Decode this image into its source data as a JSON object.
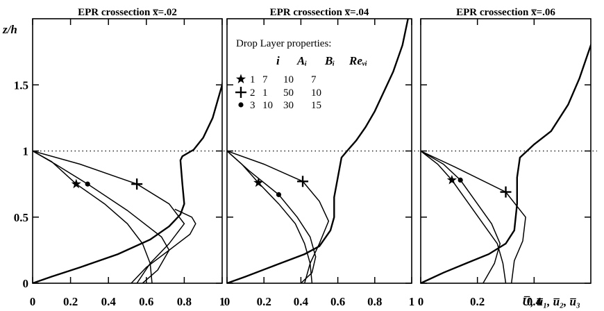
{
  "y_axis_label": "z/h",
  "x_axis_label_right": "U̅, u̅₁, u̅₂, u̅₃",
  "legend": {
    "title": "Drop Layer properties:",
    "headers": [
      "i",
      "Aᵢ",
      "Bᵢ",
      "Reᵥᵢ"
    ],
    "rows": [
      {
        "marker": "★",
        "marker_name": "star",
        "i": "1",
        "A": "7",
        "B": "10",
        "Re": "7"
      },
      {
        "marker": "+",
        "marker_name": "plus",
        "i": "2",
        "A": "1",
        "B": "50",
        "Re": "10"
      },
      {
        "marker": "•",
        "marker_name": "dot",
        "i": "3",
        "A": "10",
        "B": "30",
        "Re": "15"
      }
    ]
  },
  "chart_data": [
    {
      "type": "line",
      "title": "EPR crossection x̅=.02",
      "xlim": [
        0,
        1
      ],
      "ylim": [
        0,
        2
      ],
      "x_ticks": [
        "0",
        "0.2",
        "0.4",
        "0.6",
        "0.8",
        "1"
      ],
      "y_ticks": [
        "0",
        "0.5",
        "1",
        "1.5"
      ],
      "dotted_line_y": 1.0,
      "series": [
        {
          "id": "U",
          "style": "bold",
          "points": [
            [
              0,
              0
            ],
            [
              0.1,
              0.05
            ],
            [
              0.25,
              0.12
            ],
            [
              0.45,
              0.22
            ],
            [
              0.62,
              0.33
            ],
            [
              0.72,
              0.43
            ],
            [
              0.78,
              0.52
            ],
            [
              0.8,
              0.6
            ],
            [
              0.79,
              0.75
            ],
            [
              0.78,
              0.93
            ],
            [
              0.79,
              0.96
            ],
            [
              0.85,
              1.01
            ],
            [
              0.9,
              1.1
            ],
            [
              0.95,
              1.25
            ],
            [
              0.98,
              1.4
            ],
            [
              1.0,
              1.5
            ],
            [
              1.02,
              1.7
            ],
            [
              1.05,
              2.0
            ]
          ]
        },
        {
          "id": "u1",
          "marker": "star",
          "marker_at": [
            0.23,
            0.75
          ],
          "points": [
            [
              0,
              1
            ],
            [
              0.1,
              0.92
            ],
            [
              0.23,
              0.75
            ],
            [
              0.38,
              0.6
            ],
            [
              0.5,
              0.45
            ],
            [
              0.58,
              0.3
            ],
            [
              0.62,
              0.15
            ],
            [
              0.63,
              0
            ]
          ]
        },
        {
          "id": "u2",
          "marker": "plus",
          "marker_at": [
            0.55,
            0.75
          ],
          "points": [
            [
              0,
              1
            ],
            [
              0.25,
              0.9
            ],
            [
              0.55,
              0.75
            ],
            [
              0.72,
              0.6
            ],
            [
              0.8,
              0.45
            ],
            [
              0.72,
              0.3
            ],
            [
              0.62,
              0.15
            ],
            [
              0.55,
              0
            ]
          ]
        },
        {
          "id": "u3",
          "marker": "dot",
          "marker_at": [
            0.29,
            0.75
          ],
          "points": [
            [
              0,
              1
            ],
            [
              0.12,
              0.9
            ],
            [
              0.29,
              0.75
            ],
            [
              0.5,
              0.55
            ],
            [
              0.68,
              0.35
            ],
            [
              0.72,
              0.25
            ],
            [
              0.66,
              0.1
            ],
            [
              0.58,
              0
            ]
          ]
        },
        {
          "id": "extra",
          "points": [
            [
              0.52,
              0.0
            ],
            [
              0.6,
              0.12
            ],
            [
              0.72,
              0.25
            ],
            [
              0.83,
              0.37
            ],
            [
              0.86,
              0.45
            ],
            [
              0.84,
              0.5
            ],
            [
              0.75,
              0.56
            ]
          ]
        }
      ]
    },
    {
      "type": "line",
      "title": "EPR crossection x̅=.04",
      "xlim": [
        0,
        1
      ],
      "ylim": [
        0,
        2
      ],
      "x_ticks": [
        "0",
        "0.2",
        "0.4",
        "0.6",
        "0.8",
        "1"
      ],
      "y_ticks": [],
      "dotted_line_y": 1.0,
      "series": [
        {
          "id": "U",
          "style": "bold",
          "points": [
            [
              0,
              0
            ],
            [
              0.1,
              0.05
            ],
            [
              0.25,
              0.13
            ],
            [
              0.42,
              0.22
            ],
            [
              0.5,
              0.28
            ],
            [
              0.56,
              0.4
            ],
            [
              0.58,
              0.5
            ],
            [
              0.58,
              0.65
            ],
            [
              0.6,
              0.8
            ],
            [
              0.62,
              0.95
            ],
            [
              0.65,
              1.0
            ],
            [
              0.7,
              1.08
            ],
            [
              0.75,
              1.18
            ],
            [
              0.8,
              1.3
            ],
            [
              0.85,
              1.45
            ],
            [
              0.9,
              1.6
            ],
            [
              0.95,
              1.8
            ],
            [
              0.98,
              2.0
            ]
          ]
        },
        {
          "id": "u1",
          "marker": "star",
          "marker_at": [
            0.17,
            0.76
          ],
          "points": [
            [
              0,
              1
            ],
            [
              0.08,
              0.9
            ],
            [
              0.17,
              0.76
            ],
            [
              0.28,
              0.6
            ],
            [
              0.37,
              0.45
            ],
            [
              0.42,
              0.3
            ],
            [
              0.45,
              0.15
            ],
            [
              0.46,
              0
            ]
          ]
        },
        {
          "id": "u2",
          "marker": "plus",
          "marker_at": [
            0.41,
            0.77
          ],
          "points": [
            [
              0,
              1
            ],
            [
              0.2,
              0.9
            ],
            [
              0.41,
              0.77
            ],
            [
              0.5,
              0.62
            ],
            [
              0.55,
              0.47
            ],
            [
              0.5,
              0.3
            ],
            [
              0.45,
              0.15
            ],
            [
              0.42,
              0
            ]
          ]
        },
        {
          "id": "u3",
          "marker": "dot",
          "marker_at": [
            0.28,
            0.67
          ],
          "points": [
            [
              0,
              1
            ],
            [
              0.12,
              0.85
            ],
            [
              0.28,
              0.67
            ],
            [
              0.38,
              0.5
            ],
            [
              0.45,
              0.35
            ],
            [
              0.48,
              0.2
            ],
            [
              0.46,
              0.08
            ],
            [
              0.4,
              0
            ]
          ]
        }
      ]
    },
    {
      "type": "line",
      "title": "EPR crossection x̅=.06",
      "xlim": [
        0,
        0.6
      ],
      "ylim": [
        0,
        2
      ],
      "x_ticks": [
        "0",
        "0.2",
        "0.4"
      ],
      "y_ticks": [],
      "dotted_line_y": 1.0,
      "series": [
        {
          "id": "U",
          "style": "bold",
          "points": [
            [
              0,
              0
            ],
            [
              0.08,
              0.08
            ],
            [
              0.16,
              0.15
            ],
            [
              0.24,
              0.22
            ],
            [
              0.3,
              0.3
            ],
            [
              0.33,
              0.4
            ],
            [
              0.34,
              0.6
            ],
            [
              0.34,
              0.8
            ],
            [
              0.35,
              0.95
            ],
            [
              0.4,
              1.05
            ],
            [
              0.46,
              1.15
            ],
            [
              0.52,
              1.35
            ],
            [
              0.56,
              1.55
            ],
            [
              0.6,
              1.8
            ],
            [
              0.63,
              2.0
            ]
          ]
        },
        {
          "id": "u1",
          "marker": "star",
          "marker_at": [
            0.11,
            0.78
          ],
          "points": [
            [
              0,
              1
            ],
            [
              0.06,
              0.9
            ],
            [
              0.11,
              0.78
            ],
            [
              0.17,
              0.6
            ],
            [
              0.22,
              0.45
            ],
            [
              0.27,
              0.3
            ],
            [
              0.29,
              0.15
            ],
            [
              0.3,
              0
            ]
          ]
        },
        {
          "id": "u2",
          "marker": "plus",
          "marker_at": [
            0.3,
            0.69
          ],
          "points": [
            [
              0,
              1
            ],
            [
              0.12,
              0.88
            ],
            [
              0.3,
              0.69
            ],
            [
              0.37,
              0.5
            ],
            [
              0.36,
              0.32
            ],
            [
              0.33,
              0.17
            ],
            [
              0.32,
              0
            ]
          ]
        },
        {
          "id": "u3",
          "marker": "dot",
          "marker_at": [
            0.14,
            0.78
          ],
          "points": [
            [
              0,
              1
            ],
            [
              0.08,
              0.9
            ],
            [
              0.14,
              0.78
            ],
            [
              0.2,
              0.6
            ],
            [
              0.25,
              0.45
            ],
            [
              0.28,
              0.3
            ],
            [
              0.26,
              0.15
            ],
            [
              0.22,
              0
            ]
          ]
        }
      ]
    }
  ]
}
